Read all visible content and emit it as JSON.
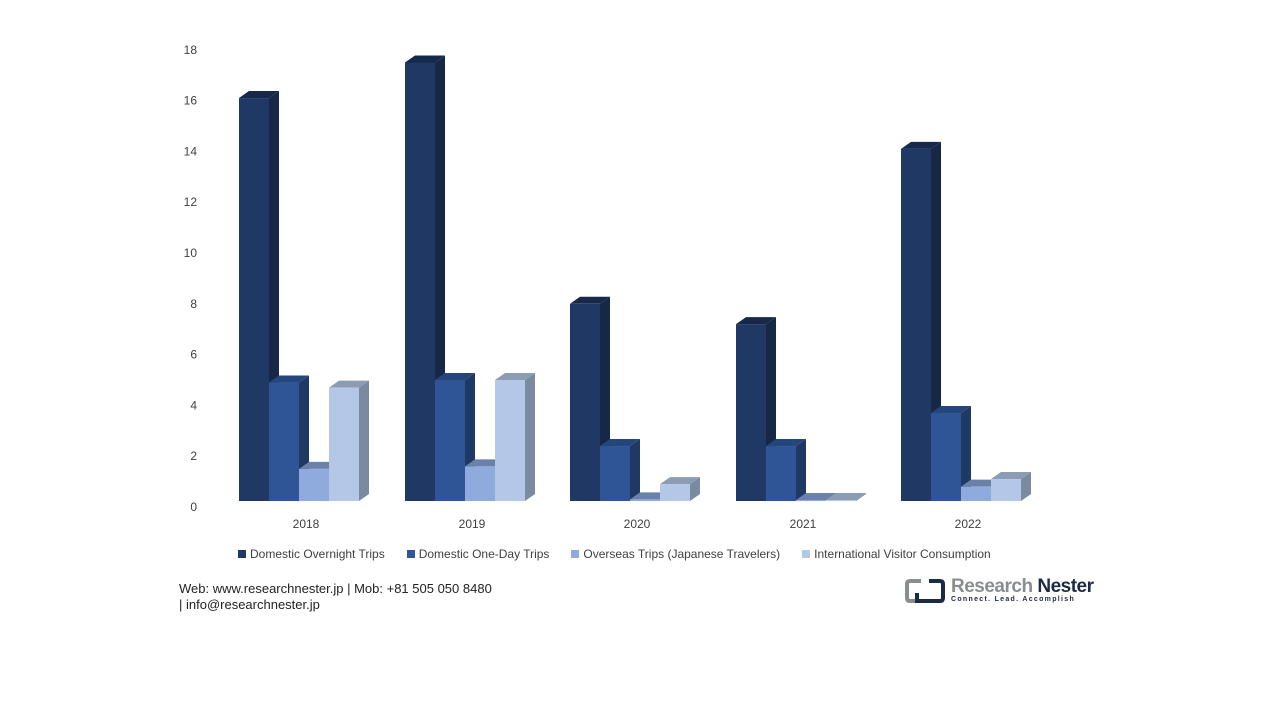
{
  "chart_data": {
    "type": "bar",
    "style": "3d-clustered-column",
    "title": "",
    "xlabel": "",
    "ylabel": "",
    "ylim": [
      0,
      18
    ],
    "yticks": [
      0,
      2,
      4,
      6,
      8,
      10,
      12,
      14,
      16,
      18
    ],
    "grid": false,
    "legend_position": "bottom",
    "categories": [
      "2018",
      "2019",
      "2020",
      "2021",
      "2022"
    ],
    "series": [
      {
        "name": "Domestic Overnight Trips",
        "color": "#1f3864",
        "side": "#162846",
        "top": "#17294a",
        "values": [
          16.1,
          17.5,
          8.0,
          7.2,
          14.1
        ]
      },
      {
        "name": "Domestic One-Day Trips",
        "color": "#2f5597",
        "side": "#1f3864",
        "top": "#25467d",
        "values": [
          4.9,
          5.0,
          2.4,
          2.4,
          3.7
        ]
      },
      {
        "name": "Overseas Trips (Japanese Travelers)",
        "color": "#8faadc",
        "side": "#5a7193",
        "top": "#6a82a8",
        "values": [
          1.5,
          1.6,
          0.3,
          0.1,
          0.8
        ]
      },
      {
        "name": "International Visitor Consumption",
        "color": "#b4c7e7",
        "side": "#7a8aa0",
        "top": "#8c9cb4",
        "values": [
          4.7,
          5.0,
          0.9,
          0.1,
          1.1
        ]
      }
    ]
  },
  "legend": {
    "items": [
      {
        "label": "Domestic Overnight Trips",
        "color": "#1f3864"
      },
      {
        "label": "Domestic One-Day Trips",
        "color": "#2f5597"
      },
      {
        "label": "Overseas Trips (Japanese Travelers)",
        "color": "#8faadc"
      },
      {
        "label": "International Visitor Consumption",
        "color": "#b4c7e7"
      }
    ]
  },
  "footer": {
    "line1": "Web: www.researchnester.jp | Mob: +81 505 050 8480",
    "line2": "| info@researchnester.jp"
  },
  "logo": {
    "name_part1": "Research",
    "name_part2": "Nester",
    "tagline": "Connect. Lead. Accomplish"
  }
}
